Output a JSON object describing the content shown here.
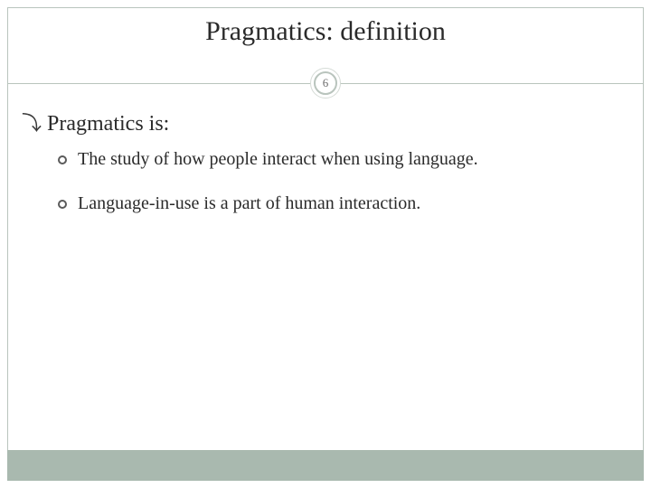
{
  "slide": {
    "title": "Pragmatics: definition",
    "page_number": "6",
    "heading": "Pragmatics is:",
    "bullets": [
      "The study of how people interact when using language.",
      "Language-in-use is a part of human interaction."
    ]
  },
  "style": {
    "background_color": "#ffffff",
    "frame_border_color": "#b9c4bd",
    "title_color": "#2a2a2a",
    "title_fontsize": 30,
    "heading_fontsize": 24,
    "body_fontsize": 20,
    "text_color": "#2a2a2a",
    "footer_color": "#a9b9af",
    "badge_border_color": "#b9c4bd",
    "badge_text_color": "#6b6b6b",
    "font_family": "Georgia, serif"
  }
}
